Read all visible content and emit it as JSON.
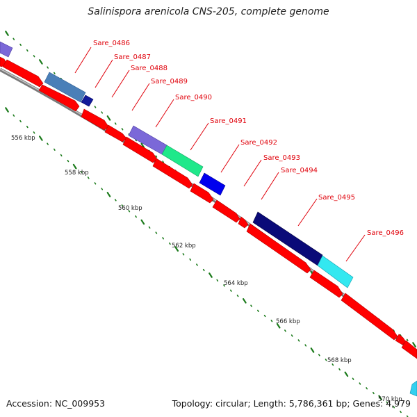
{
  "title": "Salinispora arenicola CNS-205, complete genome",
  "footer": {
    "accession": "Accession: NC_009953",
    "topology": "Topology: circular; Length: 5,786,361 bp; Genes: 4,979"
  },
  "colors": {
    "cds": "#ff0000",
    "backbone": "#9a9a9a",
    "tick": "#1a7a1a",
    "label": "#e0000a"
  },
  "gene_labels": [
    {
      "id": "g0486",
      "text": "Sare_0486"
    },
    {
      "id": "g0487",
      "text": "Sare_0487"
    },
    {
      "id": "g0488",
      "text": "Sare_0488"
    },
    {
      "id": "g0489",
      "text": "Sare_0489"
    },
    {
      "id": "g0490",
      "text": "Sare_0490"
    },
    {
      "id": "g0491",
      "text": "Sare_0491"
    },
    {
      "id": "g0492",
      "text": "Sare_0492"
    },
    {
      "id": "g0493",
      "text": "Sare_0493"
    },
    {
      "id": "g0494",
      "text": "Sare_0494"
    },
    {
      "id": "g0495",
      "text": "Sare_0495"
    },
    {
      "id": "g0496",
      "text": "Sare_0496"
    }
  ],
  "kbp_labels": [
    {
      "id": "k556",
      "text": "556 kbp"
    },
    {
      "id": "k558",
      "text": "558 kbp"
    },
    {
      "id": "k560",
      "text": "560 kbp"
    },
    {
      "id": "k562",
      "text": "562 kbp"
    },
    {
      "id": "k564",
      "text": "564 kbp"
    },
    {
      "id": "k566",
      "text": "566 kbp"
    },
    {
      "id": "k568",
      "text": "568 kbp"
    },
    {
      "id": "k570",
      "text": "570 kbp"
    }
  ]
}
